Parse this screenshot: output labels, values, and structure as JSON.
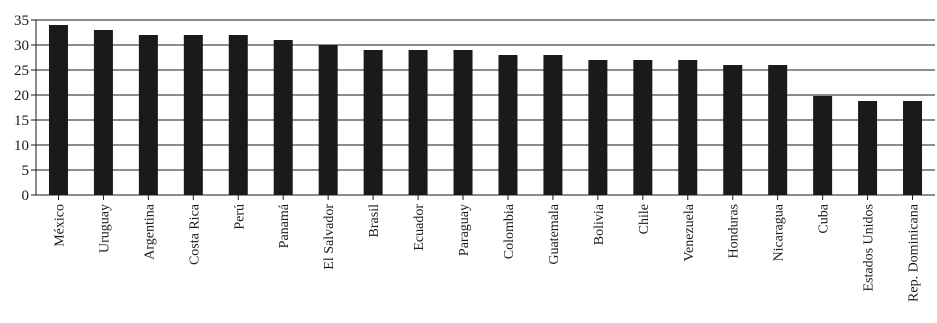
{
  "chart_data": {
    "type": "bar",
    "title": "",
    "xlabel": "",
    "ylabel": "",
    "ylim": [
      0,
      35
    ],
    "yticks": [
      0,
      5,
      10,
      15,
      20,
      25,
      30,
      35
    ],
    "grid": true,
    "categories": [
      "México",
      "Uruguay",
      "Argentina",
      "Costa Rica",
      "Perú",
      "Panamá",
      "El Salvador",
      "Brasil",
      "Ecuador",
      "Paraguay",
      "Colombia",
      "Guatemala",
      "Bolivia",
      "Chile",
      "Venezuela",
      "Honduras",
      "Nicaragua",
      "Cuba",
      "Estados Unidos",
      "Rep. Dominicana"
    ],
    "values": [
      34,
      33,
      32,
      32,
      32,
      31,
      30,
      29,
      29,
      29,
      28,
      28,
      27,
      27,
      27,
      26,
      26,
      19.8,
      18.8,
      18.8
    ],
    "bar_color": "#1a1a1a",
    "grid_color": "#1a1a1a"
  }
}
